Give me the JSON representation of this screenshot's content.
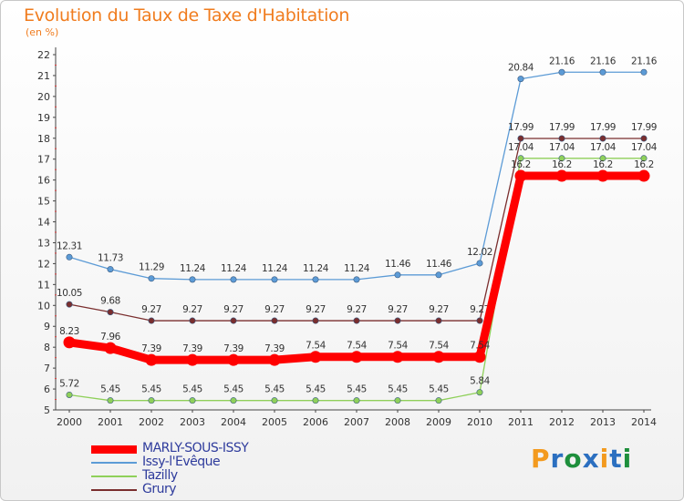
{
  "title": "Evolution du Taux de Taxe d'Habitation",
  "unit": "(en %)",
  "logo": {
    "text": "Proxiti",
    "colors": [
      "#f39a1e",
      "#2b6fc0",
      "#1e8f3c",
      "#2b6fc0",
      "#f39a1e",
      "#2b6fc0",
      "#1e8f3c"
    ]
  },
  "chart_data": {
    "type": "line",
    "x": [
      2000,
      2001,
      2002,
      2003,
      2004,
      2005,
      2006,
      2007,
      2008,
      2009,
      2010,
      2011,
      2012,
      2013,
      2014
    ],
    "ylim": [
      5,
      22
    ],
    "yticks": [
      5,
      6,
      7,
      8,
      9,
      10,
      11,
      12,
      13,
      14,
      15,
      16,
      17,
      18,
      19,
      20,
      21,
      22
    ],
    "grid": false,
    "legend_position": "bottom-left",
    "series": [
      {
        "name": "Issy-l'Evêque",
        "color": "#5c9bd6",
        "values": [
          12.31,
          11.73,
          11.29,
          11.24,
          11.24,
          11.24,
          11.24,
          11.24,
          11.46,
          11.46,
          12.02,
          20.84,
          21.16,
          21.16,
          21.16
        ],
        "labels": [
          "12.31",
          "11.73",
          "11.29",
          "11.24",
          "11.24",
          "11.24",
          "11.24",
          "11.24",
          "11.46",
          "11.46",
          "12.02",
          "20.84",
          "21.16",
          "21.16",
          "21.16"
        ]
      },
      {
        "name": "Grury",
        "color": "#7a2e2e",
        "values": [
          10.05,
          9.68,
          9.27,
          9.27,
          9.27,
          9.27,
          9.27,
          9.27,
          9.27,
          9.27,
          9.27,
          17.99,
          17.99,
          17.99,
          17.99
        ],
        "labels": [
          "10.05",
          "9.68",
          "9.27",
          "9.27",
          "9.27",
          "9.27",
          "9.27",
          "9.27",
          "9.27",
          "9.27",
          "9.27",
          "17.99",
          "17.99",
          "17.99",
          "17.99"
        ]
      },
      {
        "name": "Tazilly",
        "color": "#8fd05a",
        "values": [
          5.72,
          5.45,
          5.45,
          5.45,
          5.45,
          5.45,
          5.45,
          5.45,
          5.45,
          5.45,
          5.84,
          17.04,
          17.04,
          17.04,
          17.04
        ],
        "labels": [
          "5.72",
          "5.45",
          "5.45",
          "5.45",
          "5.45",
          "5.45",
          "5.45",
          "5.45",
          "5.45",
          "5.45",
          "5.84",
          "17.04",
          "17.04",
          "17.04",
          "17.04"
        ]
      },
      {
        "name": "MARLY-SOUS-ISSY",
        "color": "#ff0000",
        "values": [
          8.23,
          7.96,
          7.39,
          7.39,
          7.39,
          7.39,
          7.54,
          7.54,
          7.54,
          7.54,
          7.54,
          16.2,
          16.2,
          16.2,
          16.2
        ],
        "labels": [
          "8.23",
          "7.96",
          "7.39",
          "7.39",
          "7.39",
          "7.39",
          "7.54",
          "7.54",
          "7.54",
          "7.54",
          "7.54",
          "16.2",
          "16.2",
          "16.2",
          "16.2"
        ]
      }
    ],
    "legend": [
      {
        "name": "MARLY-SOUS-ISSY",
        "color": "#ff0000",
        "bold": true
      },
      {
        "name": "Issy-l'Evêque",
        "color": "#5c9bd6",
        "bold": false
      },
      {
        "name": "Tazilly",
        "color": "#8fd05a",
        "bold": false
      },
      {
        "name": "Grury",
        "color": "#7a2e2e",
        "bold": false
      }
    ]
  }
}
